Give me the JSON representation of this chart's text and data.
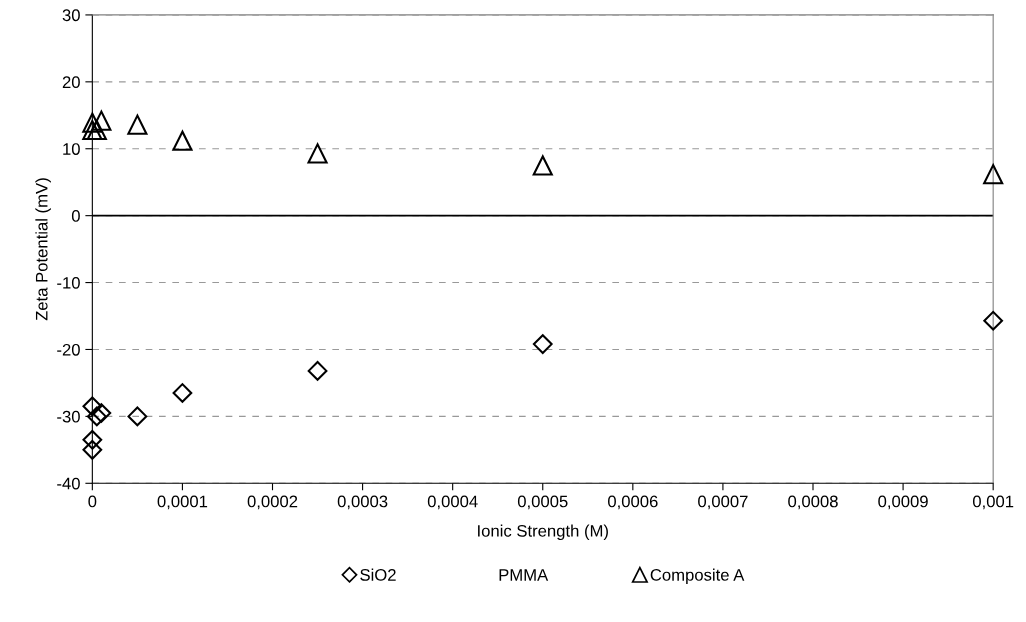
{
  "chart_data": {
    "type": "scatter",
    "xlabel": "Ionic Strength (M)",
    "ylabel": "Zeta Potential (mV)",
    "xlim": [
      0,
      0.001
    ],
    "ylim": [
      -40,
      30
    ],
    "xticks": [
      0,
      {
        "value": 0.0001,
        "label": "0,0001"
      },
      {
        "value": 0.0002,
        "label": "0,0002"
      },
      {
        "value": 0.0003,
        "label": "0,0003"
      },
      {
        "value": 0.0004,
        "label": "0,0004"
      },
      {
        "value": 0.0005,
        "label": "0,0005"
      },
      {
        "value": 0.0006,
        "label": "0,0006"
      },
      {
        "value": 0.0007,
        "label": "0,0007"
      },
      {
        "value": 0.0008,
        "label": "0,0008"
      },
      {
        "value": 0.0009,
        "label": "0,0009"
      },
      {
        "value": 0.001,
        "label": "0,001"
      }
    ],
    "yticks": [
      -40,
      -30,
      -20,
      -10,
      0,
      10,
      20,
      30
    ],
    "grid": "y",
    "legend": "bottom",
    "ref_lines": [
      {
        "axis": "y",
        "value": 0,
        "color": "#000000",
        "line_style": "solid"
      }
    ],
    "series": [
      {
        "name": "SiO2",
        "color": "#000000",
        "marker": "diamond",
        "x": [
          0,
          0,
          0,
          5e-06,
          1e-05,
          5e-05,
          0.0001,
          0.00025,
          0.0005,
          0.001
        ],
        "values": [
          -35,
          -33.5,
          -28.5,
          -30,
          -29.5,
          -30,
          -26.5,
          -23.2,
          -19.2,
          -15.7
        ]
      },
      {
        "name": "PMMA",
        "color": "#000000",
        "marker": "none"
      },
      {
        "name": "Composite A",
        "color": "#000000",
        "marker": "triangle",
        "x": [
          0,
          0,
          5e-06,
          1e-05,
          5e-05,
          0.0001,
          0.00025,
          0.0005,
          0.001
        ],
        "values": [
          13.9,
          12.8,
          12.8,
          14.2,
          13.6,
          11.2,
          9.3,
          7.5,
          6.2
        ]
      }
    ]
  }
}
